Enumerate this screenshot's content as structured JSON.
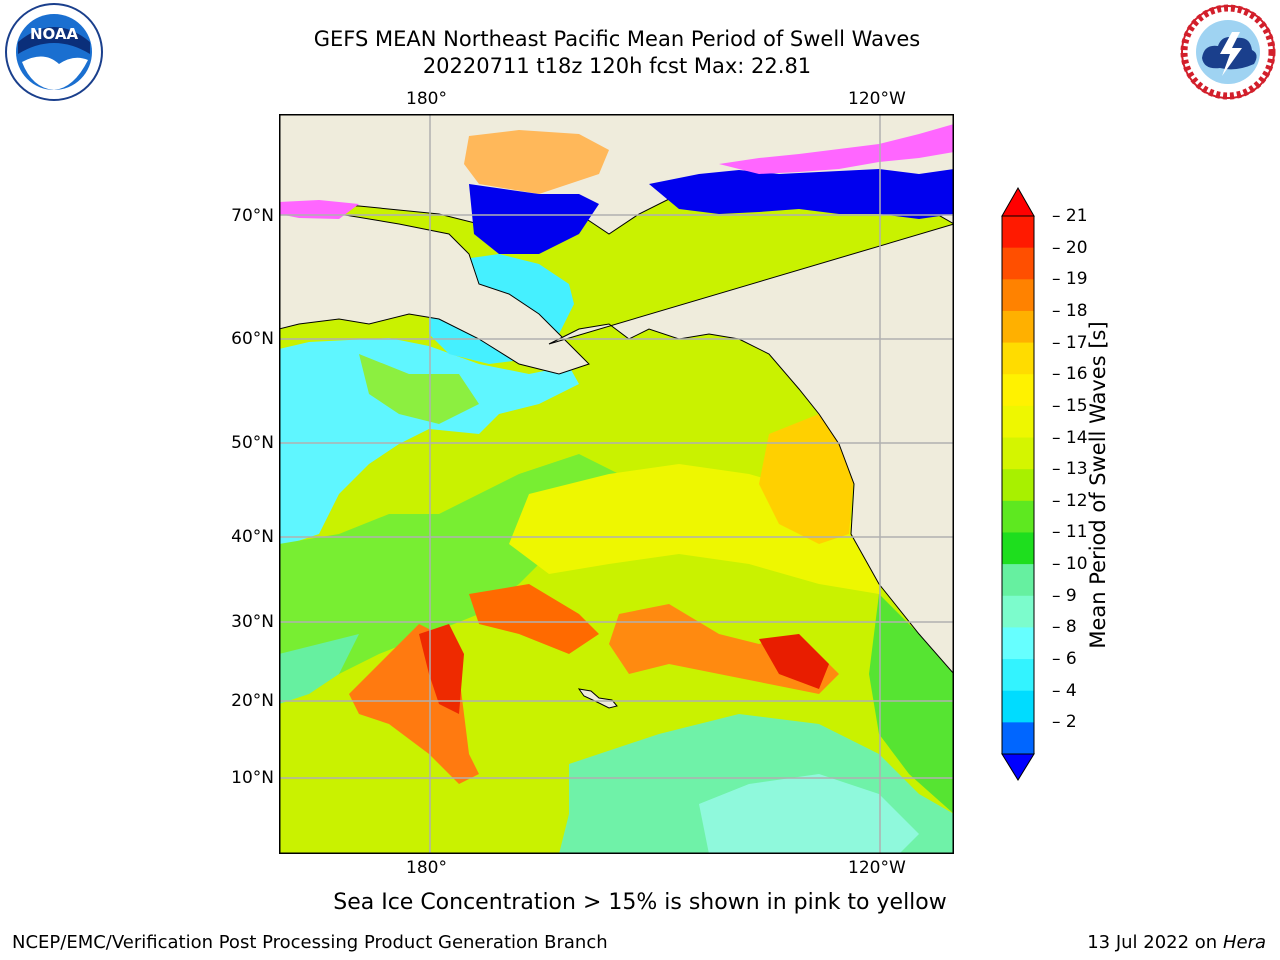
{
  "header": {
    "title_line1": "GEFS MEAN Northeast Pacific Mean Period of Swell Waves",
    "title_line2": "20220711 t18z 120h fcst   Max: 22.81"
  },
  "logos": {
    "noaa": {
      "text": "NOAA",
      "icon": "noaa-logo-icon"
    },
    "nws": {
      "icon": "national-weather-service-logo-icon"
    }
  },
  "map": {
    "lon_labels_top": [
      "180°",
      "120°W"
    ],
    "lon_labels_bottom": [
      "180°",
      "120°W"
    ],
    "lat_labels": [
      "70°N",
      "60°N",
      "50°N",
      "40°N",
      "30°N",
      "20°N",
      "10°N"
    ],
    "land_color": "#efecdc",
    "gridline_color": "#b0b0b0"
  },
  "colorbar": {
    "title": "Mean Period of Swell Waves [s]",
    "tick_labels": [
      "21",
      "20",
      "19",
      "18",
      "17",
      "16",
      "15",
      "14",
      "13",
      "12",
      "11",
      "10",
      "9",
      "8",
      "6",
      "4",
      "2"
    ],
    "colors": [
      "#ff1a00",
      "#ff4f00",
      "#ff8200",
      "#ffb000",
      "#ffdc00",
      "#fff200",
      "#eef700",
      "#d4f500",
      "#a8f000",
      "#5ee820",
      "#1ede1e",
      "#66f0a0",
      "#7cfccc",
      "#66ffff",
      "#33f3ff",
      "#00dcff",
      "#0066ff"
    ],
    "extend_top_color": "#ff0000",
    "extend_bottom_color": "#0000ff"
  },
  "note": "Sea Ice Concentration > 15% is shown in pink to yellow",
  "footer": {
    "left": "NCEP/EMC/Verification Post Processing Product Generation Branch",
    "date": "13 Jul 2022 on ",
    "host": "Hera"
  }
}
